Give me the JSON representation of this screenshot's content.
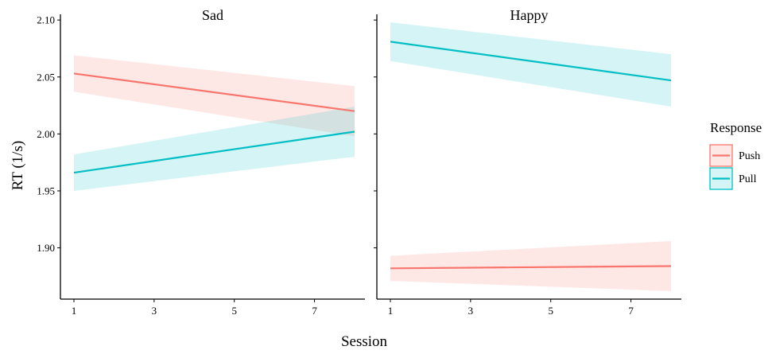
{
  "chart_data": {
    "type": "line",
    "facets": [
      "Sad",
      "Happy"
    ],
    "xlabel": "Session",
    "ylabel": "RT (1/s)",
    "xlim": [
      1,
      8
    ],
    "ylim": [
      1.855,
      2.105
    ],
    "x_ticks": [
      1,
      3,
      5,
      7
    ],
    "y_ticks": [
      1.9,
      1.95,
      2.0,
      2.05,
      2.1
    ],
    "y_tick_labels": [
      "1.90",
      "1.95",
      "2.00",
      "2.05",
      "2.10"
    ],
    "grid": false,
    "legend": {
      "title": "Response",
      "position": "right"
    },
    "series": [
      {
        "name": "Push",
        "color": "#F8766D",
        "fill": "#F8766D",
        "panels": {
          "Sad": {
            "x": [
              1,
              8
            ],
            "y": [
              2.053,
              2.02
            ],
            "lower": [
              2.037,
              1.998
            ],
            "upper": [
              2.069,
              2.042
            ]
          },
          "Happy": {
            "x": [
              1,
              8
            ],
            "y": [
              1.882,
              1.884
            ],
            "lower": [
              1.871,
              1.862
            ],
            "upper": [
              1.893,
              1.906
            ]
          }
        }
      },
      {
        "name": "Pull",
        "color": "#00BFC4",
        "fill": "#00BFC4",
        "panels": {
          "Sad": {
            "x": [
              1,
              8
            ],
            "y": [
              1.966,
              2.002
            ],
            "lower": [
              1.95,
              1.98
            ],
            "upper": [
              1.982,
              2.024
            ]
          },
          "Happy": {
            "x": [
              1,
              8
            ],
            "y": [
              2.081,
              2.047
            ],
            "lower": [
              2.064,
              2.024
            ],
            "upper": [
              2.098,
              2.07
            ]
          }
        }
      }
    ]
  }
}
